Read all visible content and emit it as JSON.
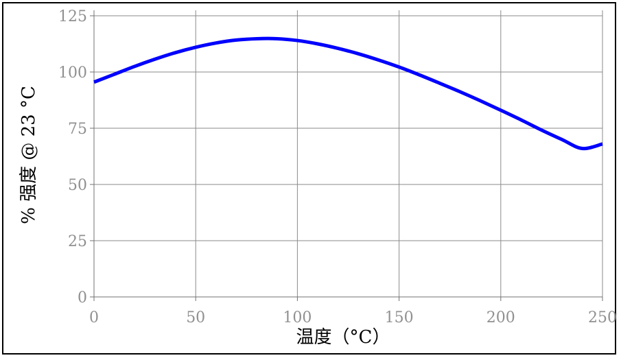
{
  "chart_data": {
    "type": "line",
    "title": "",
    "xlabel": "温度（°C）",
    "ylabel": "% 强度 @ 23 °C",
    "xlim": [
      0,
      250
    ],
    "ylim": [
      0,
      125
    ],
    "xticks": [
      0,
      50,
      100,
      150,
      200,
      250
    ],
    "yticks": [
      0,
      25,
      50,
      75,
      100,
      125
    ],
    "grid": true,
    "series": [
      {
        "color": "#0000ff",
        "x": [
          0,
          10,
          20,
          30,
          40,
          50,
          60,
          70,
          80,
          90,
          100,
          110,
          120,
          130,
          140,
          150,
          160,
          170,
          180,
          190,
          200,
          210,
          220,
          230,
          240,
          250
        ],
        "y": [
          95.5,
          99,
          102.5,
          105.7,
          108.6,
          111,
          112.9,
          114.2,
          114.8,
          114.8,
          114,
          112.5,
          110.5,
          108.1,
          105.3,
          102.2,
          98.7,
          95,
          91.2,
          87.2,
          83,
          78.7,
          74.2,
          70,
          66,
          68
        ]
      }
    ]
  }
}
